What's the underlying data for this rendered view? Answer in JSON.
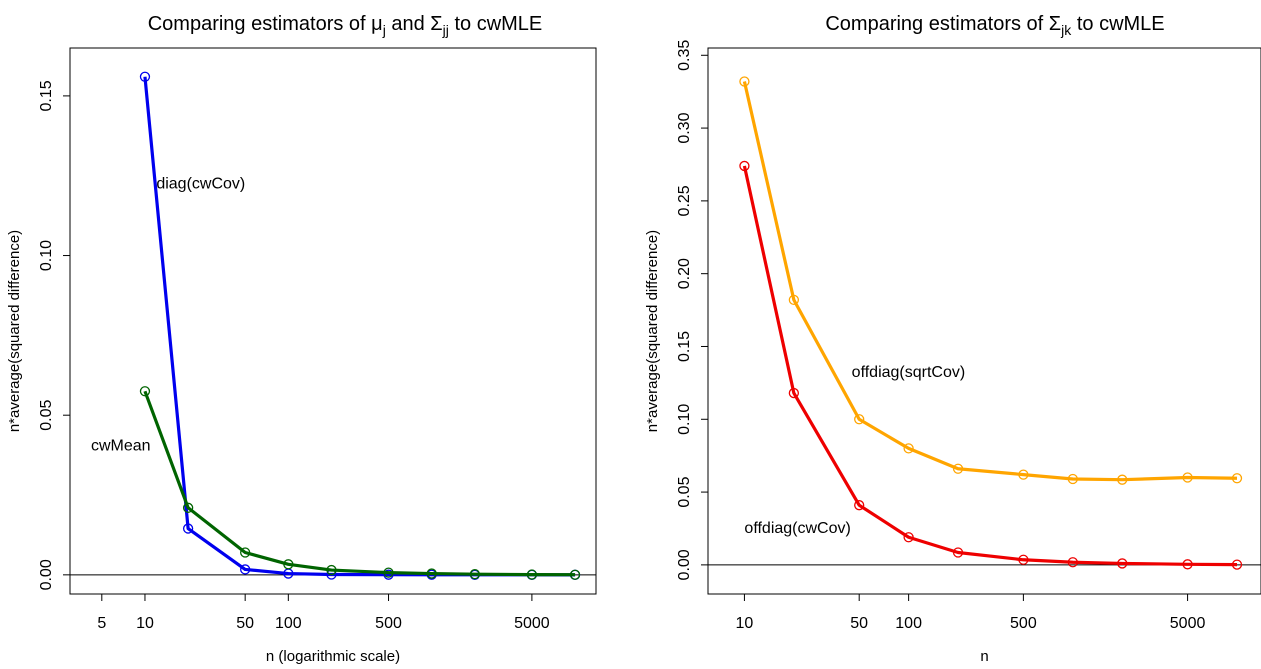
{
  "chart_data": [
    {
      "type": "line",
      "title": {
        "prefix": "Comparing estimators of ",
        "mu_sym": "μ",
        "mu_sub": "j",
        "mid": " and ",
        "sigma_sym": "Σ",
        "sigma_sub": "jj",
        "suffix": " to cwMLE"
      },
      "xlabel": "n (logarithmic scale)",
      "ylabel": "n*average(squared difference)",
      "x_scale": "log",
      "xlim": [
        3,
        14000
      ],
      "ylim": [
        -0.006,
        0.165
      ],
      "x_ticks": [
        5,
        10,
        50,
        100,
        500,
        5000
      ],
      "x_tick_labels": [
        "5",
        "10",
        "50",
        "100",
        "500",
        "5000"
      ],
      "y_ticks": [
        0.0,
        0.05,
        0.1,
        0.15
      ],
      "y_tick_labels": [
        "0.00",
        "0.05",
        "0.10",
        "0.15"
      ],
      "reference_line": 0,
      "x": [
        10,
        20,
        50,
        100,
        200,
        500,
        1000,
        2000,
        5000,
        10000
      ],
      "series": [
        {
          "name": "diag(cwCov)",
          "color": "#0000ee",
          "label_x": 12,
          "label_y": 0.121,
          "values": [
            0.156,
            0.0145,
            0.0017,
            0.0004,
            0.0001,
            5e-05,
            2e-05,
            1e-05,
            5e-06,
            2e-06
          ]
        },
        {
          "name": "cwMean",
          "color": "#006400",
          "label_x": 4.2,
          "label_y": 0.039,
          "values": [
            0.0575,
            0.021,
            0.007,
            0.0033,
            0.0015,
            0.0007,
            0.0004,
            0.0002,
            8e-05,
            4e-05
          ]
        }
      ]
    },
    {
      "type": "line",
      "title": {
        "prefix": "Comparing estimators of ",
        "sigma_sym": "Σ",
        "sigma_sub": "jk",
        "suffix": " to cwMLE"
      },
      "xlabel": "n",
      "ylabel": "n*average(squared difference)",
      "x_scale": "log",
      "xlim": [
        6,
        14000
      ],
      "ylim": [
        -0.02,
        0.355
      ],
      "x_ticks": [
        10,
        50,
        100,
        500,
        5000
      ],
      "x_tick_labels": [
        "10",
        "50",
        "100",
        "500",
        "5000"
      ],
      "y_ticks": [
        0.0,
        0.05,
        0.1,
        0.15,
        0.2,
        0.25,
        0.3,
        0.35
      ],
      "y_tick_labels": [
        "0.00",
        "0.05",
        "0.10",
        "0.15",
        "0.20",
        "0.25",
        "0.30",
        "0.35"
      ],
      "reference_line": 0,
      "x": [
        10,
        20,
        50,
        100,
        200,
        500,
        1000,
        2000,
        5000,
        10000
      ],
      "series": [
        {
          "name": "offdiag(sqrtCov)",
          "color": "#ffa500",
          "label_x": 45,
          "label_y": 0.129,
          "values": [
            0.332,
            0.182,
            0.1,
            0.08,
            0.066,
            0.062,
            0.059,
            0.0585,
            0.06,
            0.0595
          ]
        },
        {
          "name": "offdiag(cwCov)",
          "color": "#ee0000",
          "label_x": 10,
          "label_y": 0.022,
          "values": [
            0.274,
            0.118,
            0.041,
            0.019,
            0.0085,
            0.0035,
            0.0018,
            0.001,
            0.0004,
            0.0002
          ]
        }
      ]
    }
  ]
}
